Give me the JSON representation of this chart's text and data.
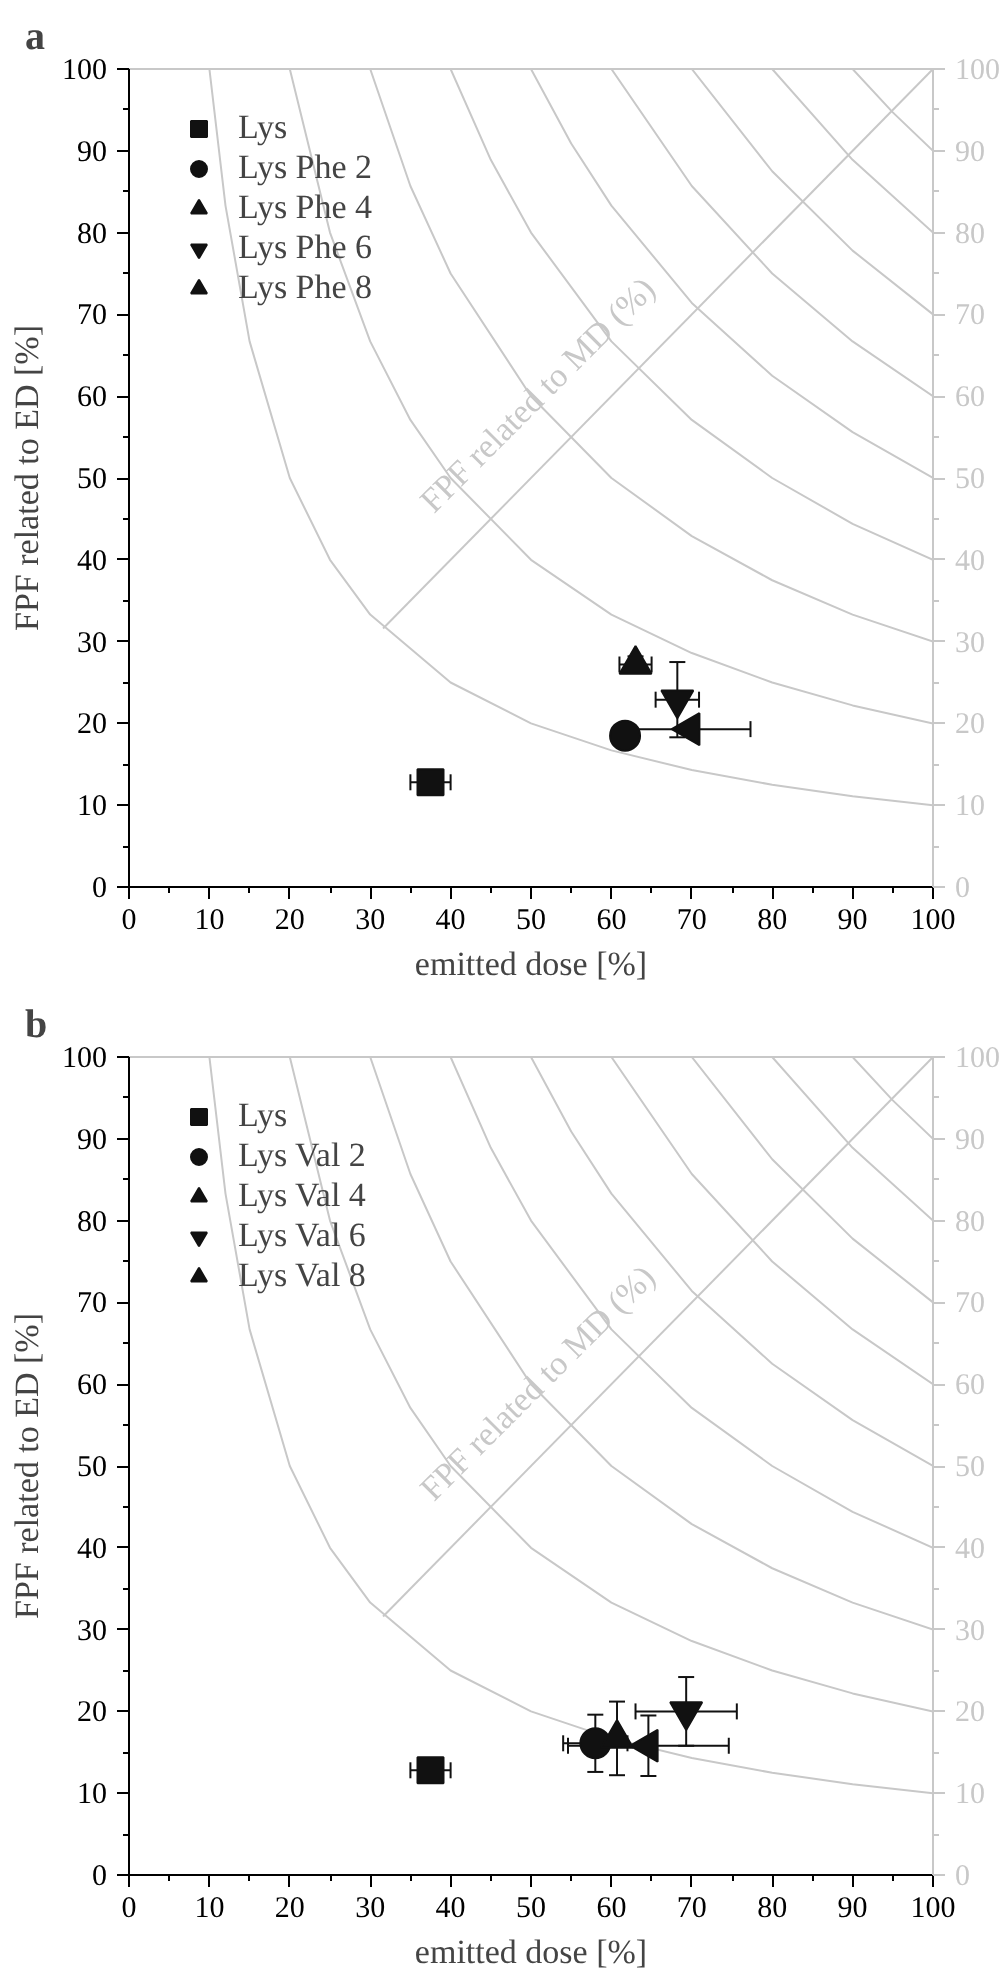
{
  "chart_data": [
    {
      "type": "scatter",
      "title": "a",
      "xlabel": "emitted dose [%]",
      "ylabel": "FPF related to ED [%]",
      "y2label": "FPF related to MD (%)",
      "xlim": [
        0,
        100
      ],
      "xticks": [
        0,
        10,
        20,
        30,
        40,
        50,
        60,
        70,
        80,
        90,
        100
      ],
      "ylim": [
        0,
        100
      ],
      "yticks": [
        0,
        10,
        20,
        30,
        40,
        50,
        60,
        70,
        80,
        90,
        100
      ],
      "y2lim": [
        0,
        100
      ],
      "y2ticks": [
        0,
        10,
        20,
        30,
        40,
        50,
        60,
        70,
        80,
        90,
        100
      ],
      "grid": false,
      "legend": "top left",
      "series": [
        {
          "type": "line",
          "color": "#c8c8c8",
          "x": [
            10,
            12,
            15,
            20,
            25,
            30,
            40,
            50,
            60,
            70,
            80,
            90,
            100
          ],
          "values": [
            100,
            83.3,
            66.7,
            50,
            40,
            33.3,
            25,
            20,
            16.7,
            14.3,
            12.5,
            11.1,
            10
          ]
        },
        {
          "type": "line",
          "color": "#c8c8c8",
          "x": [
            20,
            25,
            30,
            35,
            40,
            50,
            60,
            70,
            80,
            90,
            100
          ],
          "values": [
            100,
            80,
            66.7,
            57.1,
            50,
            40,
            33.3,
            28.6,
            25,
            22.2,
            20
          ]
        },
        {
          "type": "line",
          "color": "#c8c8c8",
          "x": [
            30,
            35,
            40,
            50,
            60,
            70,
            80,
            90,
            100
          ],
          "values": [
            100,
            85.7,
            75,
            60,
            50,
            42.9,
            37.5,
            33.3,
            30
          ]
        },
        {
          "type": "line",
          "color": "#c8c8c8",
          "x": [
            40,
            45,
            50,
            60,
            70,
            80,
            90,
            100
          ],
          "values": [
            100,
            88.9,
            80,
            66.7,
            57.1,
            50,
            44.4,
            40
          ]
        },
        {
          "type": "line",
          "color": "#c8c8c8",
          "x": [
            50,
            55,
            60,
            70,
            80,
            90,
            100
          ],
          "values": [
            100,
            90.9,
            83.3,
            71.4,
            62.5,
            55.6,
            50
          ]
        },
        {
          "type": "line",
          "color": "#c8c8c8",
          "x": [
            60,
            70,
            80,
            90,
            100
          ],
          "values": [
            100,
            85.7,
            75,
            66.7,
            60
          ]
        },
        {
          "type": "line",
          "color": "#c8c8c8",
          "x": [
            70,
            80,
            90,
            100
          ],
          "values": [
            100,
            87.5,
            77.8,
            70
          ]
        },
        {
          "type": "line",
          "color": "#c8c8c8",
          "x": [
            80,
            90,
            100
          ],
          "values": [
            100,
            88.9,
            80
          ]
        },
        {
          "type": "line",
          "color": "#c8c8c8",
          "x": [
            90,
            95,
            100
          ],
          "values": [
            100,
            94.7,
            90
          ]
        },
        {
          "type": "line",
          "color": "#c8c8c8",
          "x": [
            31.6,
            100
          ],
          "values": [
            31.6,
            100
          ]
        },
        {
          "name": "Lys",
          "marker": "square",
          "color": "#111111",
          "x": [
            37.5
          ],
          "values": [
            12.8
          ],
          "errors": [
            null
          ],
          "xerrors": [
            2.5
          ]
        },
        {
          "name": "Lys Phe 2",
          "marker": "circle",
          "color": "#111111",
          "x": [
            61.7
          ],
          "values": [
            18.5
          ],
          "errors": [
            null
          ],
          "xerrors": [
            null
          ]
        },
        {
          "name": "Lys Phe 4",
          "marker": "triangle",
          "color": "#111111",
          "x": [
            63.0
          ],
          "values": [
            27.2
          ],
          "errors": [
            1.0
          ],
          "xerrors": [
            2.0
          ]
        },
        {
          "name": "Lys Phe 6",
          "marker": "triangle_down",
          "color": "#111111",
          "x": [
            68.2
          ],
          "values": [
            22.9
          ],
          "errors": [
            4.6
          ],
          "xerrors": [
            2.7
          ]
        },
        {
          "name": "Lys Phe 8",
          "marker": "triangle_left",
          "color": "#111111",
          "x": [
            69.8
          ],
          "values": [
            19.3
          ],
          "errors": [
            null
          ],
          "xerrors": [
            7.5
          ]
        }
      ]
    },
    {
      "type": "scatter",
      "title": "b",
      "xlabel": "emitted dose [%]",
      "ylabel": "FPF related to ED [%]",
      "y2label": "FPF related to MD (%)",
      "xlim": [
        0,
        100
      ],
      "xticks": [
        0,
        10,
        20,
        30,
        40,
        50,
        60,
        70,
        80,
        90,
        100
      ],
      "ylim": [
        0,
        100
      ],
      "yticks": [
        0,
        10,
        20,
        30,
        40,
        50,
        60,
        70,
        80,
        90,
        100
      ],
      "y2lim": [
        0,
        100
      ],
      "y2ticks": [
        0,
        10,
        20,
        30,
        40,
        50,
        60,
        70,
        80,
        90,
        100
      ],
      "grid": false,
      "legend": "top left",
      "series": [
        {
          "type": "line",
          "color": "#c8c8c8",
          "x": [
            10,
            12,
            15,
            20,
            25,
            30,
            40,
            50,
            60,
            70,
            80,
            90,
            100
          ],
          "values": [
            100,
            83.3,
            66.7,
            50,
            40,
            33.3,
            25,
            20,
            16.7,
            14.3,
            12.5,
            11.1,
            10
          ]
        },
        {
          "type": "line",
          "color": "#c8c8c8",
          "x": [
            20,
            25,
            30,
            35,
            40,
            50,
            60,
            70,
            80,
            90,
            100
          ],
          "values": [
            100,
            80,
            66.7,
            57.1,
            50,
            40,
            33.3,
            28.6,
            25,
            22.2,
            20
          ]
        },
        {
          "type": "line",
          "color": "#c8c8c8",
          "x": [
            30,
            35,
            40,
            50,
            60,
            70,
            80,
            90,
            100
          ],
          "values": [
            100,
            85.7,
            75,
            60,
            50,
            42.9,
            37.5,
            33.3,
            30
          ]
        },
        {
          "type": "line",
          "color": "#c8c8c8",
          "x": [
            40,
            45,
            50,
            60,
            70,
            80,
            90,
            100
          ],
          "values": [
            100,
            88.9,
            80,
            66.7,
            57.1,
            50,
            44.4,
            40
          ]
        },
        {
          "type": "line",
          "color": "#c8c8c8",
          "x": [
            50,
            55,
            60,
            70,
            80,
            90,
            100
          ],
          "values": [
            100,
            90.9,
            83.3,
            71.4,
            62.5,
            55.6,
            50
          ]
        },
        {
          "type": "line",
          "color": "#c8c8c8",
          "x": [
            60,
            70,
            80,
            90,
            100
          ],
          "values": [
            100,
            85.7,
            75,
            66.7,
            60
          ]
        },
        {
          "type": "line",
          "color": "#c8c8c8",
          "x": [
            70,
            80,
            90,
            100
          ],
          "values": [
            100,
            87.5,
            77.8,
            70
          ]
        },
        {
          "type": "line",
          "color": "#c8c8c8",
          "x": [
            80,
            90,
            100
          ],
          "values": [
            100,
            88.9,
            80
          ]
        },
        {
          "type": "line",
          "color": "#c8c8c8",
          "x": [
            90,
            95,
            100
          ],
          "values": [
            100,
            94.7,
            90
          ]
        },
        {
          "type": "line",
          "color": "#c8c8c8",
          "x": [
            31.6,
            100
          ],
          "values": [
            31.6,
            100
          ]
        },
        {
          "name": "Lys",
          "marker": "square",
          "color": "#111111",
          "x": [
            37.5
          ],
          "values": [
            12.8
          ],
          "errors": [
            null
          ],
          "xerrors": [
            2.5
          ]
        },
        {
          "name": "Lys Val 2",
          "marker": "circle",
          "color": "#111111",
          "x": [
            58.0
          ],
          "values": [
            16.1
          ],
          "errors": [
            3.5
          ],
          "xerrors": [
            4.0
          ]
        },
        {
          "name": "Lys Val 4",
          "marker": "triangle",
          "color": "#111111",
          "x": [
            60.7
          ],
          "values": [
            16.7
          ],
          "errors": [
            4.5
          ],
          "xerrors": [
            null
          ]
        },
        {
          "name": "Lys Val 6",
          "marker": "triangle_down",
          "color": "#111111",
          "x": [
            69.3
          ],
          "values": [
            20.0
          ],
          "errors": [
            4.2
          ],
          "xerrors": [
            6.3
          ]
        },
        {
          "name": "Lys Val 8",
          "marker": "triangle_left",
          "color": "#111111",
          "x": [
            64.6
          ],
          "values": [
            15.8
          ],
          "errors": [
            3.7
          ],
          "xerrors": [
            10.0
          ]
        }
      ]
    }
  ]
}
